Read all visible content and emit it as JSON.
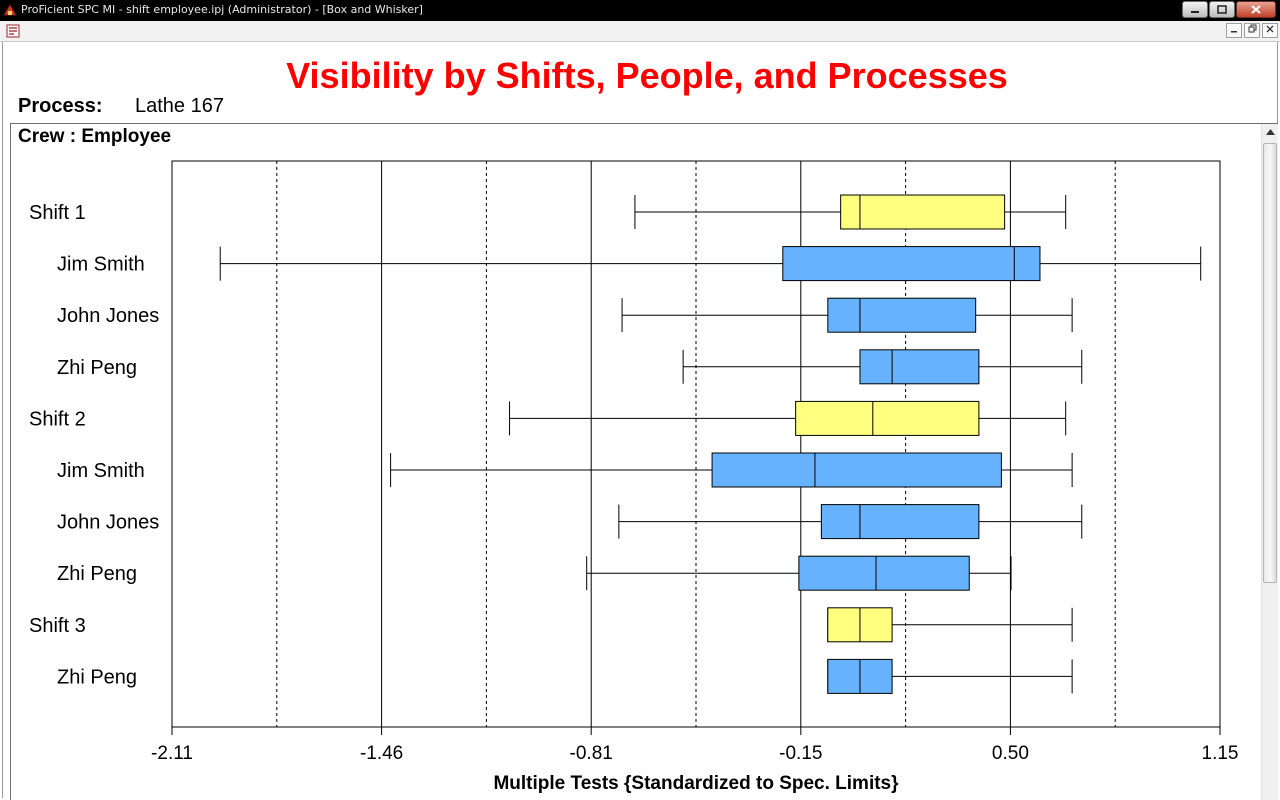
{
  "window": {
    "title": "ProFicient SPC MI - shift employee.ipj (Administrator) - [Box and Whisker]",
    "minimize_icon": "minimize-icon",
    "maximize_icon": "maximize-icon",
    "close_icon": "close-icon"
  },
  "header": {
    "process_label": "Process:",
    "process_value": "Lathe 167",
    "crew_label": "Crew : Employee"
  },
  "colors": {
    "title": "#ff0000",
    "shift_box": "#ffff80",
    "employee_box": "#66b2ff"
  },
  "chart_data": {
    "type": "box",
    "title": "Visibility by Shifts, People, and Processes",
    "xlabel": "Multiple Tests {Standardized to Spec. Limits}",
    "ylabel": "",
    "xlim": [
      -2.11,
      1.15
    ],
    "xticks": [
      "-2.11",
      "-1.46",
      "-0.81",
      "-0.15",
      "0.50",
      "1.15"
    ],
    "grid": "vertical solid at ticks, dotted at midpoints",
    "rows": [
      {
        "label": "Shift 1",
        "level": "shift",
        "min": -0.67,
        "q1": -0.03,
        "median": 0.03,
        "q3": 0.48,
        "max": 0.67
      },
      {
        "label": "Jim Smith",
        "level": "employee",
        "min": -1.96,
        "q1": -0.21,
        "median": 0.51,
        "q3": 0.59,
        "max": 1.09
      },
      {
        "label": "John Jones",
        "level": "employee",
        "min": -0.71,
        "q1": -0.07,
        "median": 0.03,
        "q3": 0.39,
        "max": 0.69
      },
      {
        "label": "Zhi Peng",
        "level": "employee",
        "min": -0.52,
        "q1": 0.03,
        "median": 0.13,
        "q3": 0.4,
        "max": 0.72
      },
      {
        "label": "Shift 2",
        "level": "shift",
        "min": -1.06,
        "q1": -0.17,
        "median": 0.07,
        "q3": 0.4,
        "max": 0.67
      },
      {
        "label": "Jim Smith",
        "level": "employee",
        "min": -1.43,
        "q1": -0.43,
        "median": -0.11,
        "q3": 0.47,
        "max": 0.69
      },
      {
        "label": "John Jones",
        "level": "employee",
        "min": -0.72,
        "q1": -0.09,
        "median": 0.03,
        "q3": 0.4,
        "max": 0.72
      },
      {
        "label": "Zhi Peng",
        "level": "employee",
        "min": -0.82,
        "q1": -0.16,
        "median": 0.08,
        "q3": 0.37,
        "max": 0.5
      },
      {
        "label": "Shift 3",
        "level": "shift",
        "min": -0.07,
        "q1": -0.07,
        "median": 0.03,
        "q3": 0.13,
        "max": 0.69
      },
      {
        "label": "Zhi Peng",
        "level": "employee",
        "min": -0.07,
        "q1": -0.07,
        "median": 0.03,
        "q3": 0.13,
        "max": 0.69
      }
    ]
  }
}
